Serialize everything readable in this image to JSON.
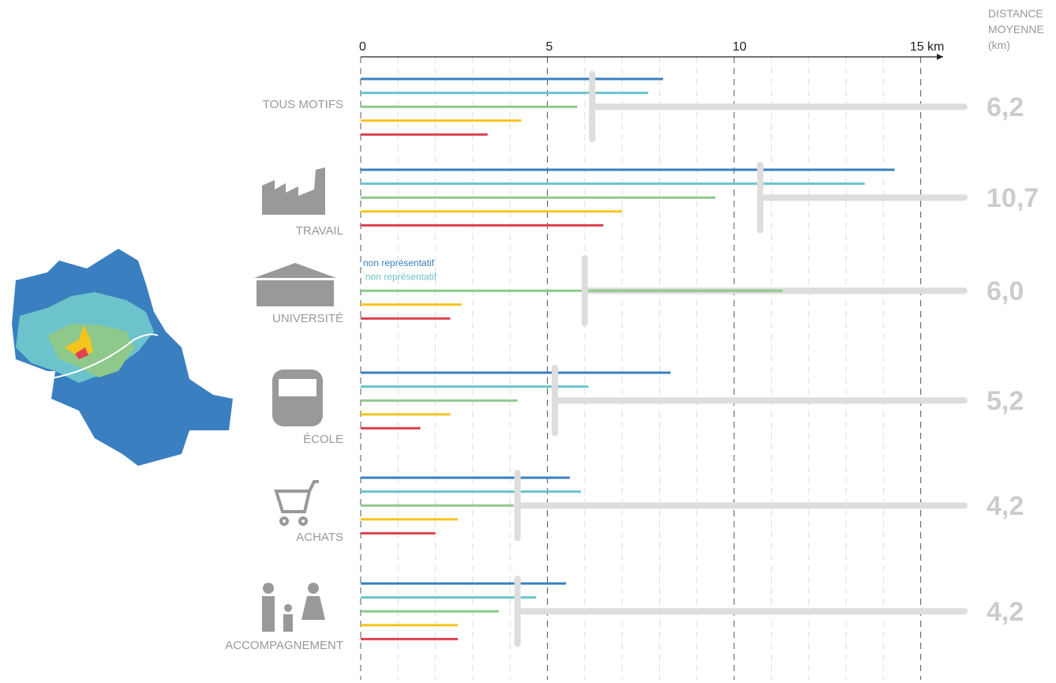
{
  "chart_data": {
    "type": "bar",
    "orientation": "horizontal",
    "header": [
      "DISTANCE",
      "MOYENNE",
      "(km)"
    ],
    "categories": [
      "TOUS MOTIFS",
      "TRAVAIL",
      "UNIVERSITÉ",
      "ÉCOLE",
      "ACHATS",
      "ACCOMPAGNEMENT"
    ],
    "series": [
      {
        "color": "#3a7fc0",
        "values": [
          8.1,
          14.3,
          null,
          8.3,
          5.6,
          5.5
        ],
        "value_labels": [
          null,
          null,
          "non représentatif",
          null,
          null,
          null
        ]
      },
      {
        "color": "#6cc3cb",
        "values": [
          7.7,
          13.5,
          null,
          6.1,
          5.9,
          4.7
        ],
        "value_labels": [
          null,
          null,
          "non représentatif",
          null,
          null,
          null
        ]
      },
      {
        "color": "#8ec98b",
        "values": [
          5.8,
          9.5,
          11.3,
          4.2,
          4.1,
          3.7
        ]
      },
      {
        "color": "#f5c51c",
        "values": [
          4.3,
          7.0,
          2.7,
          2.4,
          2.6,
          2.6
        ]
      },
      {
        "color": "#e0404f",
        "values": [
          3.4,
          6.5,
          2.4,
          1.6,
          2.0,
          2.6
        ]
      }
    ],
    "averages": {
      "color": "#dddddd",
      "values": [
        6.2,
        10.7,
        6.0,
        5.2,
        4.2,
        4.2
      ],
      "value_labels": [
        "6,2",
        "10,7",
        "6,0",
        "5,2",
        "4,2",
        "4,2"
      ]
    },
    "xlim": [
      0,
      15.6
    ],
    "xticks": [
      0,
      5,
      10,
      {
        "value": 15,
        "label": "15 km"
      }
    ],
    "minor_xticks": [
      1,
      2,
      3,
      4,
      6,
      7,
      8,
      9,
      11,
      12,
      13,
      14
    ],
    "grid": true
  }
}
